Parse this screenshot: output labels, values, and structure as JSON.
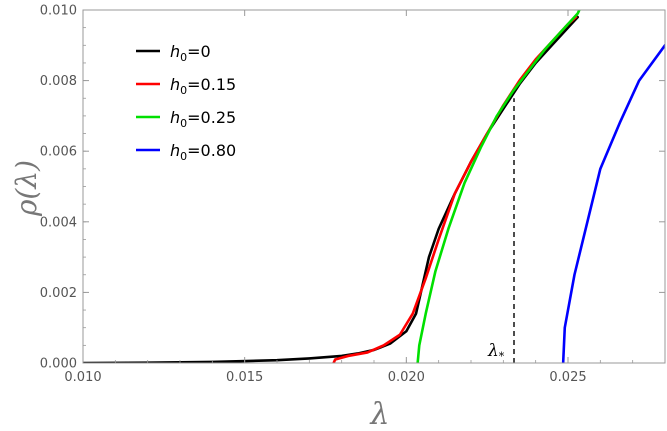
{
  "chart_data": {
    "type": "line",
    "xlabel": "λ",
    "ylabel": "ρ(λ)",
    "xlim": [
      0.01,
      0.028
    ],
    "ylim": [
      0.0,
      0.01
    ],
    "x_ticks": [
      "0.010",
      "0.015",
      "0.020",
      "0.025"
    ],
    "x_tick_values": [
      0.01,
      0.015,
      0.02,
      0.025
    ],
    "y_ticks": [
      "0.000",
      "0.002",
      "0.004",
      "0.006",
      "0.008",
      "0.010"
    ],
    "y_tick_values": [
      0.0,
      0.002,
      0.004,
      0.006,
      0.008,
      0.01
    ],
    "legend_position": "top-left",
    "grid": false,
    "series": [
      {
        "name": "h0=0",
        "legend": {
          "var": "h",
          "sub": "0",
          "value": "=0"
        },
        "color": "#000000",
        "points": [
          [
            0.01,
            0.0
          ],
          [
            0.012,
            1e-05
          ],
          [
            0.014,
            3e-05
          ],
          [
            0.016,
            8e-05
          ],
          [
            0.017,
            0.00013
          ],
          [
            0.018,
            0.0002
          ],
          [
            0.0185,
            0.00027
          ],
          [
            0.019,
            0.00037
          ],
          [
            0.0195,
            0.00055
          ],
          [
            0.02,
            0.0009
          ],
          [
            0.0203,
            0.0014
          ],
          [
            0.0205,
            0.0022
          ],
          [
            0.0207,
            0.003
          ],
          [
            0.021,
            0.0038
          ],
          [
            0.0215,
            0.0048
          ],
          [
            0.022,
            0.0057
          ],
          [
            0.0225,
            0.0065
          ],
          [
            0.023,
            0.0072
          ],
          [
            0.0235,
            0.0079
          ],
          [
            0.024,
            0.0085
          ],
          [
            0.0245,
            0.009
          ],
          [
            0.025,
            0.0095
          ],
          [
            0.0253,
            0.0098
          ]
        ]
      },
      {
        "name": "h0=0.15",
        "legend": {
          "var": "h",
          "sub": "0",
          "value": "=0.15"
        },
        "color": "#ff0000",
        "points": [
          [
            0.01775,
            0.0
          ],
          [
            0.0178,
            0.0001
          ],
          [
            0.0182,
            0.0002
          ],
          [
            0.0188,
            0.0003
          ],
          [
            0.0193,
            0.0005
          ],
          [
            0.0198,
            0.0008
          ],
          [
            0.0202,
            0.0014
          ],
          [
            0.0206,
            0.0024
          ],
          [
            0.021,
            0.0035
          ],
          [
            0.0215,
            0.0048
          ],
          [
            0.022,
            0.0057
          ],
          [
            0.0225,
            0.0065
          ],
          [
            0.023,
            0.0073
          ],
          [
            0.0235,
            0.008
          ],
          [
            0.024,
            0.0086
          ],
          [
            0.0245,
            0.0091
          ],
          [
            0.025,
            0.0096
          ],
          [
            0.02525,
            0.0098
          ]
        ]
      },
      {
        "name": "h0=0.25",
        "legend": {
          "var": "h",
          "sub": "0",
          "value": "=0.25"
        },
        "color": "#00e000",
        "points": [
          [
            0.02035,
            0.0
          ],
          [
            0.0204,
            0.0005
          ],
          [
            0.0206,
            0.0014
          ],
          [
            0.0209,
            0.0026
          ],
          [
            0.0213,
            0.0038
          ],
          [
            0.0218,
            0.0051
          ],
          [
            0.0223,
            0.0061
          ],
          [
            0.0228,
            0.007
          ],
          [
            0.0233,
            0.0077
          ],
          [
            0.0238,
            0.0083
          ],
          [
            0.0243,
            0.0089
          ],
          [
            0.0248,
            0.0094
          ],
          [
            0.0253,
            0.0099
          ],
          [
            0.02535,
            0.01
          ]
        ]
      },
      {
        "name": "h0=0.80",
        "legend": {
          "var": "h",
          "sub": "0",
          "value": "=0.80"
        },
        "color": "#0000ff",
        "points": [
          [
            0.02485,
            0.0
          ],
          [
            0.0249,
            0.001
          ],
          [
            0.0252,
            0.0025
          ],
          [
            0.0256,
            0.004
          ],
          [
            0.026,
            0.0055
          ],
          [
            0.0266,
            0.0068
          ],
          [
            0.0272,
            0.008
          ],
          [
            0.028,
            0.009
          ]
        ]
      }
    ],
    "annotations": [
      {
        "text": "λ",
        "subscript": "*",
        "x": 0.02333,
        "y_from": 0.0,
        "y_to": 0.0075,
        "style": "dashed-vertical"
      }
    ]
  }
}
